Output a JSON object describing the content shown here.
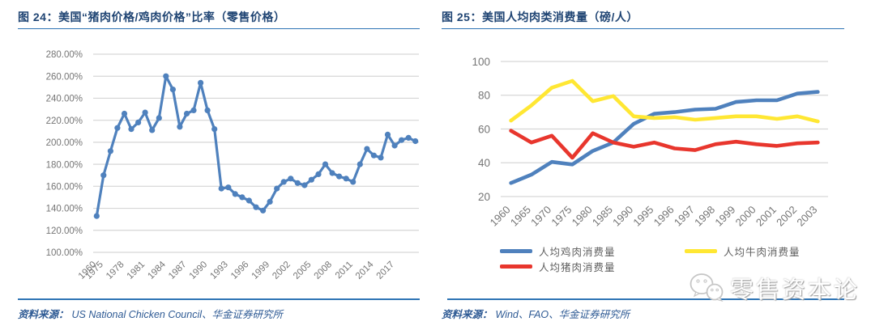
{
  "colors": {
    "title_navy": "#1F4473",
    "rule_blue": "#2E74B5",
    "grid_gray": "#D6D6D6",
    "axis_label_gray": "#757575",
    "line_blue": "#4F81BD",
    "line_red": "#E8362D",
    "line_yellow": "#FFE733"
  },
  "panels": [
    {
      "title": "图 24：美国“猪肉价格/鸡肉价格”比率（零售价格）",
      "source_prefix": "资料来源：",
      "source": "US National Chicken Council、华金证券研究所"
    },
    {
      "title": "图 25：美国人均肉类消费量（磅/人）",
      "source_prefix": "资料来源：",
      "source": "Wind、FAO、华金证券研究所"
    }
  ],
  "watermark": {
    "text": "零售资本论",
    "icon": "wechat-chat-bubbles-icon"
  },
  "chart_data": [
    {
      "type": "line",
      "title": "图 24：美国“猪肉价格/鸡肉价格”比率（零售价格）",
      "xlabel": "",
      "ylabel": "",
      "ylim": [
        100,
        280
      ],
      "y_tick_step": 20,
      "y_tick_format": "percent",
      "grid": true,
      "marker": true,
      "legend": "none",
      "line_color": "#4F81BD",
      "categories": [
        "1960",
        "1975",
        "1976",
        "1977",
        "1978",
        "1979",
        "1980",
        "1981",
        "1982",
        "1983",
        "1984",
        "1985",
        "1986",
        "1987",
        "1988",
        "1989",
        "1990",
        "1991",
        "1992",
        "1993",
        "1994",
        "1995",
        "1996",
        "1997",
        "1998",
        "1999",
        "2000",
        "2001",
        "2002",
        "2003",
        "2004",
        "2005",
        "2006",
        "2007",
        "2008",
        "2009",
        "2010",
        "2011",
        "2012",
        "2013",
        "2014",
        "2015",
        "2016",
        "2017",
        "2018",
        "2019",
        "2020"
      ],
      "values": [
        133,
        170,
        192,
        213,
        226,
        212,
        218,
        227,
        211,
        222,
        260,
        248,
        214,
        226,
        229,
        254,
        229,
        212,
        158,
        159,
        153,
        150,
        147,
        141,
        138,
        146,
        158,
        164,
        167,
        163,
        161,
        166,
        171,
        180,
        172,
        169,
        167,
        164,
        180,
        194,
        188,
        186,
        207,
        197,
        202,
        204,
        201
      ],
      "x_tick_labels": [
        "1960",
        "1975",
        "1978",
        "1981",
        "1984",
        "1987",
        "1990",
        "1993",
        "1996",
        "1999",
        "2002",
        "2005",
        "2008",
        "2011",
        "2014",
        "2017"
      ]
    },
    {
      "type": "line",
      "title": "图 25：美国人均肉类消费量（磅/人）",
      "xlabel": "",
      "ylabel": "",
      "ylim": [
        20,
        100
      ],
      "y_tick_step": 20,
      "y_tick_format": "plain",
      "grid": true,
      "marker": false,
      "legend": "bottom",
      "categories": [
        "1960",
        "1965",
        "1970",
        "1975",
        "1980",
        "1985",
        "1990",
        "1995",
        "1996",
        "1997",
        "1998",
        "1999",
        "2000",
        "2001",
        "2002",
        "2003"
      ],
      "series": [
        {
          "name": "人均鸡肉消费量",
          "color": "#4F81BD",
          "values": [
            28,
            33,
            40.5,
            39,
            47,
            52,
            63,
            69,
            70,
            71.5,
            72,
            76,
            77,
            77,
            81,
            82
          ]
        },
        {
          "name": "人均猪肉消费量",
          "color": "#E8362D",
          "values": [
            59,
            52,
            56,
            43,
            57.5,
            52,
            49.5,
            52,
            48.5,
            47.5,
            51,
            52.5,
            51,
            50,
            51.5,
            52
          ]
        },
        {
          "name": "人均牛肉消费量",
          "color": "#FFE733",
          "values": [
            65,
            74,
            84.5,
            88.5,
            76.5,
            79.5,
            67.5,
            66.5,
            67,
            65.5,
            66.5,
            67.5,
            67.5,
            66,
            67.5,
            64.5
          ]
        }
      ],
      "legend_columns": [
        [
          "人均鸡肉消费量",
          "人均猪肉消费量"
        ],
        [
          "人均牛肉消费量"
        ]
      ]
    }
  ]
}
